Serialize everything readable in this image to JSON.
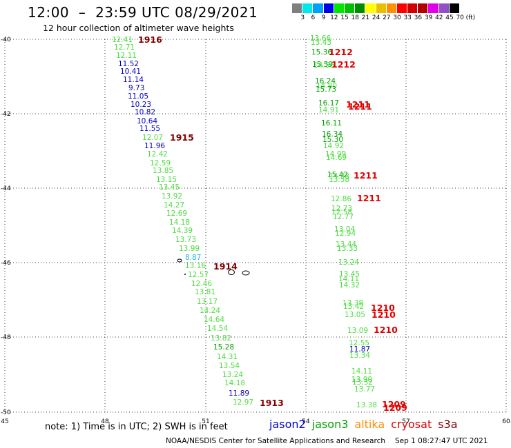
{
  "header": {
    "title": "12:00  –  23:59 UTC 08/29/2021",
    "subtitle": "12 hour collection of altimeter wave heights"
  },
  "scale": {
    "unit": "(ft)",
    "labels": [
      "3",
      "6",
      "9",
      "12",
      "15",
      "18",
      "21",
      "24",
      "27",
      "30",
      "33",
      "36",
      "39",
      "42",
      "45",
      "70"
    ],
    "colors": [
      "#7f7f7f",
      "#00e8e8",
      "#00a0ff",
      "#0000e8",
      "#00e600",
      "#00c000",
      "#008c00",
      "#ffff00",
      "#e8c000",
      "#ff9000",
      "#ff0000",
      "#d00000",
      "#b00000",
      "#e000e8",
      "#9050c8",
      "#000000"
    ]
  },
  "axes": {
    "x_labels": [
      "45",
      "48",
      "51",
      "54",
      "57",
      "60"
    ],
    "y_labels": [
      "-40",
      "-42",
      "-44",
      "-46",
      "-48",
      "-50"
    ]
  },
  "observations": {
    "track_a": [
      {
        "v": "12.41",
        "c": "#4cdd3f"
      },
      {
        "v": "12.71",
        "c": "#4cdd3f"
      },
      {
        "v": "12.11",
        "c": "#4cdd3f"
      },
      {
        "v": "11.52",
        "c": "#0000c8"
      },
      {
        "v": "10.41",
        "c": "#0000c8"
      },
      {
        "v": "11.14",
        "c": "#0000c8"
      },
      {
        "v": "9.73",
        "c": "#0000c8"
      },
      {
        "v": "11.05",
        "c": "#0000c8"
      },
      {
        "v": "10.23",
        "c": "#0000c8"
      },
      {
        "v": "10.82",
        "c": "#0000c8"
      },
      {
        "v": "10.64",
        "c": "#0000c8"
      },
      {
        "v": "11.55",
        "c": "#0000c8"
      },
      {
        "v": "12.07",
        "c": "#4cdd3f"
      },
      {
        "v": "11.96",
        "c": "#0000c8"
      },
      {
        "v": "12.42",
        "c": "#4cdd3f"
      },
      {
        "v": "12.59",
        "c": "#4cdd3f"
      },
      {
        "v": "13.85",
        "c": "#4cdd3f"
      },
      {
        "v": "13.15",
        "c": "#4cdd3f"
      },
      {
        "v": "13.45",
        "c": "#4cdd3f"
      },
      {
        "v": "13.92",
        "c": "#4cdd3f"
      },
      {
        "v": "14.27",
        "c": "#4cdd3f"
      },
      {
        "v": "12.69",
        "c": "#4cdd3f"
      },
      {
        "v": "14.18",
        "c": "#4cdd3f"
      },
      {
        "v": "14.39",
        "c": "#4cdd3f"
      },
      {
        "v": "13.73",
        "c": "#4cdd3f"
      },
      {
        "v": "13.99",
        "c": "#4cdd3f"
      },
      {
        "v": "8.87",
        "c": "#20b8e0"
      },
      {
        "v": "13.16",
        "c": "#4cdd3f"
      },
      {
        "v": "12.57",
        "c": "#4cdd3f"
      },
      {
        "v": "12.46",
        "c": "#4cdd3f"
      },
      {
        "v": "13.81",
        "c": "#4cdd3f"
      },
      {
        "v": "13.17",
        "c": "#4cdd3f"
      },
      {
        "v": "14.24",
        "c": "#4cdd3f"
      },
      {
        "v": "14.64",
        "c": "#4cdd3f"
      },
      {
        "v": "14.54",
        "c": "#4cdd3f"
      },
      {
        "v": "13.82",
        "c": "#4cdd3f"
      },
      {
        "v": "15.28",
        "c": "#00a000"
      },
      {
        "v": "14.31",
        "c": "#4cdd3f"
      },
      {
        "v": "13.54",
        "c": "#4cdd3f"
      },
      {
        "v": "13.24",
        "c": "#4cdd3f"
      },
      {
        "v": "14.18",
        "c": "#4cdd3f"
      },
      {
        "v": "11.89",
        "c": "#0000c8"
      },
      {
        "v": "12.97",
        "c": "#4cdd3f"
      }
    ],
    "track_b": [
      {
        "v": "13.66",
        "c": "#4cdd3f"
      },
      {
        "v": "13.43",
        "c": "#4cdd3f"
      },
      {
        "v": "15.36",
        "c": "#00a000"
      },
      {
        "v": "15.59",
        "c": "#00a000"
      },
      {
        "v": "14.56",
        "c": "#4cdd3f"
      },
      {
        "v": "16.24",
        "c": "#00a000"
      },
      {
        "v": "14.80",
        "c": "#4cdd3f"
      },
      {
        "v": "15.73",
        "c": "#00a000"
      },
      {
        "v": "16.17",
        "c": "#00a000"
      },
      {
        "v": "14.91",
        "c": "#4cdd3f"
      },
      {
        "v": "16.11",
        "c": "#00a000"
      },
      {
        "v": "16.34",
        "c": "#00a000"
      },
      {
        "v": "15.30",
        "c": "#00a000"
      },
      {
        "v": "14.92",
        "c": "#4cdd3f"
      },
      {
        "v": "14.99",
        "c": "#4cdd3f"
      },
      {
        "v": "14.69",
        "c": "#4cdd3f"
      },
      {
        "v": "15.42",
        "c": "#00a000"
      },
      {
        "v": "14.33",
        "c": "#4cdd3f"
      },
      {
        "v": "13.58",
        "c": "#4cdd3f"
      },
      {
        "v": "12.86",
        "c": "#4cdd3f"
      },
      {
        "v": "12.73",
        "c": "#4cdd3f"
      },
      {
        "v": "12.58",
        "c": "#4cdd3f"
      },
      {
        "v": "12.77",
        "c": "#4cdd3f"
      },
      {
        "v": "13.04",
        "c": "#4cdd3f"
      },
      {
        "v": "12.94",
        "c": "#4cdd3f"
      },
      {
        "v": "13.44",
        "c": "#4cdd3f"
      },
      {
        "v": "13.33",
        "c": "#4cdd3f"
      },
      {
        "v": "13.24",
        "c": "#4cdd3f"
      },
      {
        "v": "13.45",
        "c": "#4cdd3f"
      },
      {
        "v": "14.11",
        "c": "#4cdd3f"
      },
      {
        "v": "14.32",
        "c": "#4cdd3f"
      },
      {
        "v": "13.38",
        "c": "#4cdd3f"
      },
      {
        "v": "13.42",
        "c": "#4cdd3f"
      },
      {
        "v": "13.05",
        "c": "#4cdd3f"
      },
      {
        "v": "13.09",
        "c": "#4cdd3f"
      },
      {
        "v": "12.55",
        "c": "#4cdd3f"
      },
      {
        "v": "11.87",
        "c": "#0000c8"
      },
      {
        "v": "13.34",
        "c": "#4cdd3f"
      },
      {
        "v": "14.11",
        "c": "#4cdd3f"
      },
      {
        "v": "13.90",
        "c": "#4cdd3f"
      },
      {
        "v": "13.32",
        "c": "#4cdd3f"
      },
      {
        "v": "13.77",
        "c": "#4cdd3f"
      },
      {
        "v": "13.38",
        "c": "#4cdd3f"
      }
    ],
    "time_tags": [
      {
        "t": "1916",
        "c": "#800000"
      },
      {
        "t": "1915",
        "c": "#800000"
      },
      {
        "t": "1914",
        "c": "#800000"
      },
      {
        "t": "1913",
        "c": "#800000"
      },
      {
        "t": "1212",
        "c": "#e00000"
      },
      {
        "t": "1212",
        "c": "#e00000"
      },
      {
        "t": "1211",
        "c": "#e00000"
      },
      {
        "t": "1211",
        "c": "#e00000"
      },
      {
        "t": "1211",
        "c": "#e00000"
      },
      {
        "t": "1211",
        "c": "#e00000"
      },
      {
        "t": "1210",
        "c": "#e00000"
      },
      {
        "t": "1210",
        "c": "#e00000"
      },
      {
        "t": "1210",
        "c": "#e00000"
      },
      {
        "t": "1209",
        "c": "#e00000"
      },
      {
        "t": "1209",
        "c": "#e00000"
      }
    ]
  },
  "footer": {
    "note": "note: 1) Time is in UTC; 2) SWH is in feet",
    "satellites": [
      {
        "name": "jason2",
        "c": "#0000c8"
      },
      {
        "name": "jason3",
        "c": "#00a000"
      },
      {
        "name": "altika",
        "c": "#ff8c00"
      },
      {
        "name": "cryosat",
        "c": "#e00000"
      },
      {
        "name": "s3a",
        "c": "#800000"
      }
    ],
    "credit": "NOAA/NESDIS Center for Satellite Applications and Research",
    "timestamp": "Sep  1 08:27:47 UTC 2021"
  }
}
